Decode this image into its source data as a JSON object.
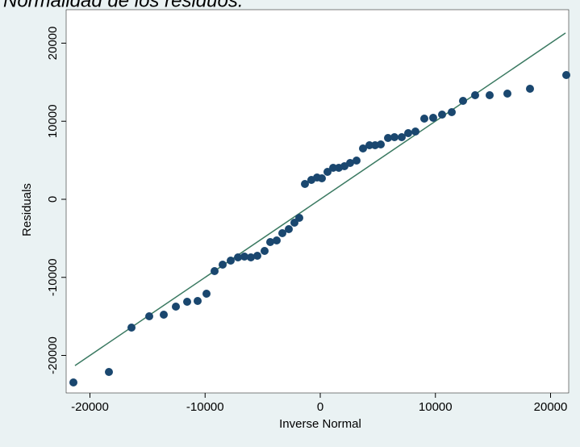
{
  "chart_data": {
    "type": "scatter",
    "title": "Normalidad de los residuos.",
    "x_label": "Inverse Normal",
    "y_label": "Residuals",
    "xlim": [
      -22067,
      21576
    ],
    "ylim": [
      -24806,
      24289
    ],
    "xticks": [
      -20000,
      -10000,
      0,
      10000,
      20000
    ],
    "yticks": [
      -20000,
      -10000,
      0,
      10000,
      20000
    ],
    "series": [
      {
        "color": "#1a476f",
        "x": [
          -21436,
          -18354,
          -16392,
          -14851,
          -13590,
          -12539,
          -11559,
          -10648,
          -9877,
          -9177,
          -8476,
          -7776,
          -7145,
          -6585,
          -6025,
          -5464,
          -4834,
          -4343,
          -3783,
          -3292,
          -2732,
          -2242,
          -1821,
          -1331,
          -771,
          -280,
          140,
          630,
          1121,
          1611,
          2102,
          2592,
          3152,
          3713,
          4273,
          4764,
          5254,
          5884,
          6445,
          7075,
          7636,
          8266,
          9037,
          9807,
          10578,
          11419,
          12399,
          13450,
          14711,
          16252,
          18214,
          21366
        ],
        "values": [
          -23463,
          -22119,
          -16434,
          -14987,
          -14780,
          -13747,
          -13127,
          -13023,
          -12093,
          -9199,
          -8372,
          -7855,
          -7442,
          -7339,
          -7442,
          -7235,
          -6615,
          -5478,
          -5271,
          -4341,
          -3824,
          -2997,
          -2377,
          1964,
          2481,
          2791,
          2687,
          3514,
          4031,
          4031,
          4238,
          4651,
          4961,
          6512,
          6925,
          6925,
          7028,
          7855,
          7959,
          7959,
          8475,
          8682,
          10336,
          10439,
          10853,
          11163,
          12610,
          13333,
          13333,
          13540,
          14160,
          15917
        ]
      }
    ],
    "reference_line": {
      "color": "#3b7a62",
      "x": [
        -21300,
        21300
      ],
      "values": [
        -21300,
        21300
      ]
    }
  }
}
